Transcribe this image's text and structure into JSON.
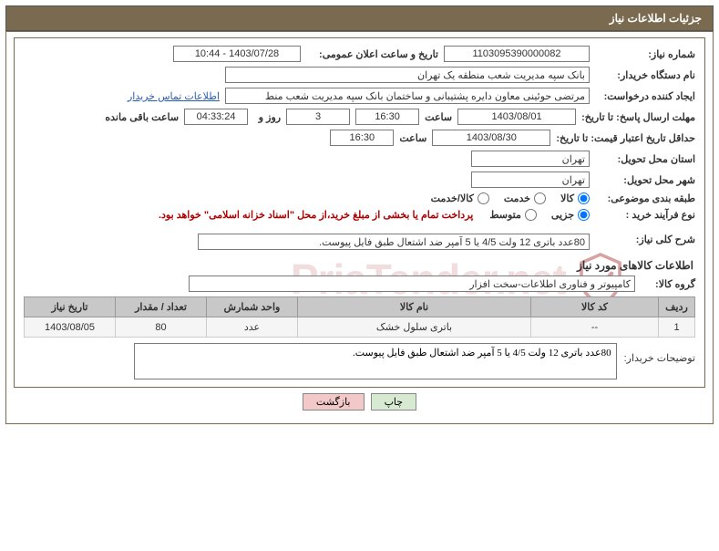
{
  "title": "جزئیات اطلاعات نیاز",
  "labels": {
    "needNumber": "شماره نیاز:",
    "announceDate": "تاریخ و ساعت اعلان عمومی:",
    "buyerOrg": "نام دستگاه خریدار:",
    "requester": "ایجاد کننده درخواست:",
    "respDeadline": "مهلت ارسال پاسخ: تا تاریخ:",
    "hour": "ساعت",
    "daysAnd": "روز و",
    "remaining": "ساعت باقی مانده",
    "minValidity": "حداقل تاریخ اعتبار قیمت: تا تاریخ:",
    "deliveryProvince": "استان محل تحویل:",
    "deliveryCity": "شهر محل تحویل:",
    "category": "طبقه بندی موضوعی:",
    "processType": "نوع فرآیند خرید :",
    "overallDesc": "شرح کلی نیاز:",
    "productsInfo": "اطلاعات کالاهای مورد نیاز",
    "productGroup": "گروه کالا:",
    "buyerNotes": "توضیحات خریدار:",
    "contactLink": "اطلاعات تماس خریدار"
  },
  "values": {
    "needNumber": "1103095390000082",
    "announceDate": "1403/07/28 - 10:44",
    "buyerOrg": "بانک سپه مدیریت شعب منطقه یک تهران",
    "requester": "مرتضی حوئینی معاون دایره پشتیبانی و ساختمان بانک سپه مدیریت شعب منط",
    "respDate": "1403/08/01",
    "respTime": "16:30",
    "daysLeft": "3",
    "timeLeft": "04:33:24",
    "validityDate": "1403/08/30",
    "validityTime": "16:30",
    "province": "تهران",
    "city": "تهران",
    "processNote": "پرداخت تمام یا بخشی از مبلغ خرید،از محل \"اسناد خزانه اسلامی\" خواهد بود.",
    "overallDesc": "80عدد باتری 12 ولت 4/5 یا 5 آمپر ضد اشتعال طبق فایل پیوست.",
    "productGroup": "کامپیوتر و فناوری اطلاعات-سخت افزار",
    "buyerNotes": "80عدد باتری 12 ولت 4/5 یا 5 آمپر ضد اشتعال طبق فایل پیوست."
  },
  "categoryOptions": {
    "goods": "کالا",
    "service": "خدمت",
    "both": "کالا/خدمت"
  },
  "processOptions": {
    "partial": "جزیی",
    "medium": "متوسط"
  },
  "table": {
    "headers": {
      "row": "ردیف",
      "code": "کد کالا",
      "name": "نام کالا",
      "unit": "واحد شمارش",
      "qty": "تعداد / مقدار",
      "date": "تاریخ نیاز"
    },
    "rows": [
      {
        "row": "1",
        "code": "--",
        "name": "باتری سلول خشک",
        "unit": "عدد",
        "qty": "80",
        "date": "1403/08/05"
      }
    ],
    "colWidths": {
      "row": "40px",
      "code": "140px",
      "name": "auto",
      "unit": "100px",
      "qty": "100px",
      "date": "100px"
    }
  },
  "buttons": {
    "print": "چاپ",
    "back": "بازگشت"
  },
  "watermark": "PriaTender.net",
  "colors": {
    "headerBg": "#7a6a4f",
    "gridHeaderBg": "#c8c8c8",
    "printBtn": "#d7e9d0",
    "backBtn": "#f2c8c8",
    "link": "#2a5db0",
    "noteRed": "#b00000"
  }
}
